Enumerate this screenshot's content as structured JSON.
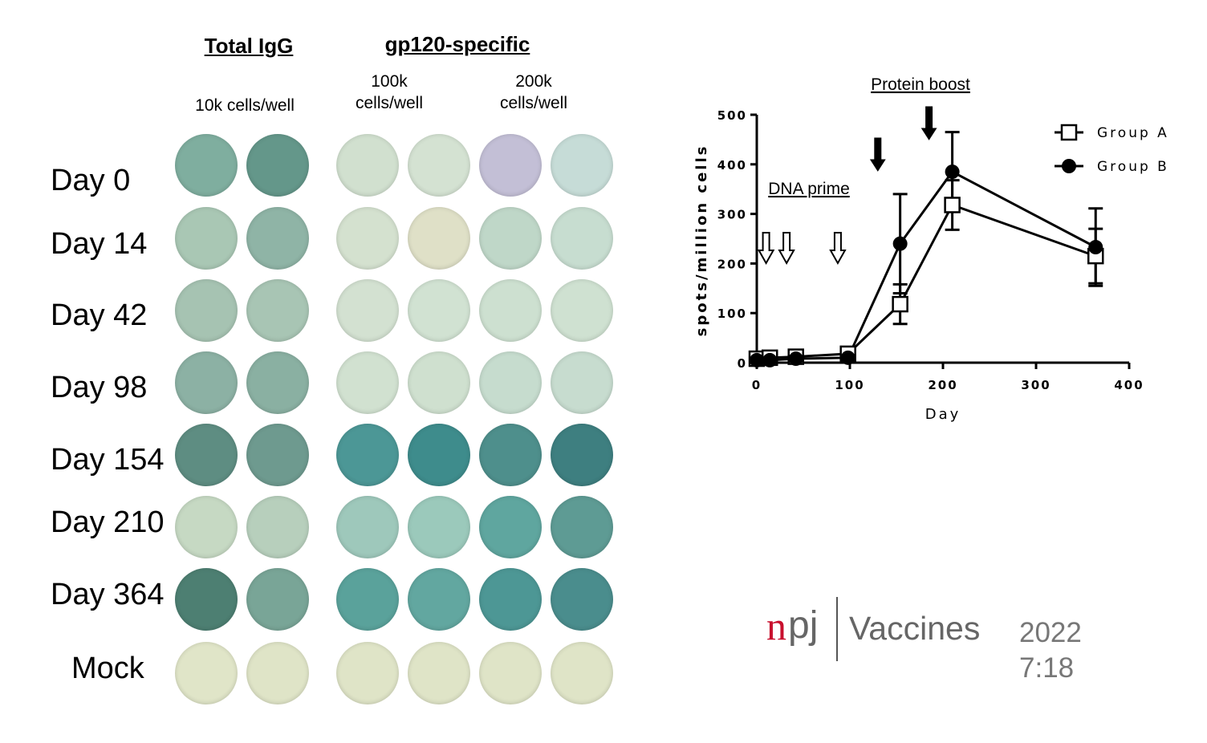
{
  "plate": {
    "header_total": "Total IgG",
    "header_gp120": "gp120-specific",
    "col_10k": "10k cells/well",
    "col_100k_line1": "100k",
    "col_100k_line2": "cells/well",
    "col_200k_line1": "200k",
    "col_200k_line2": "cells/well",
    "rows": [
      "Day 0",
      "Day 14",
      "Day 42",
      "Day 98",
      "Day 154",
      "Day 210",
      "Day 364",
      "Mock"
    ],
    "well_colors": [
      [
        "#7fae9f",
        "#64978a",
        "#d1e0cf",
        "#d4e2d2",
        "#c3bfd6",
        "#c6dcd7"
      ],
      [
        "#a9c7b4",
        "#8fb4a6",
        "#d4e1cf",
        "#dfe0c7",
        "#bfd7c8",
        "#c7ddd0"
      ],
      [
        "#a6c3b2",
        "#a8c5b4",
        "#d3e1d1",
        "#d1e2d2",
        "#cde0d0",
        "#cfe1d1"
      ],
      [
        "#8cb1a4",
        "#8ab0a2",
        "#d1e1d0",
        "#cfe0cf",
        "#c6dcce",
        "#c7dccf"
      ],
      [
        "#5e8d82",
        "#6e9a8f",
        "#4c9796",
        "#3e8c8c",
        "#4e8f8c",
        "#3e7f80"
      ],
      [
        "#c6d9c3",
        "#b7cfbc",
        "#9ec8bb",
        "#9bc9bb",
        "#5fa69f",
        "#5e9b94"
      ],
      [
        "#4d7f72",
        "#79a597",
        "#5aa29b",
        "#62a7a0",
        "#4d9795",
        "#4a8d8d"
      ],
      [
        "#e0e5c8",
        "#dfe4c7",
        "#dfe4c7",
        "#dfe4c7",
        "#dfe4c7",
        "#dfe4c7"
      ]
    ]
  },
  "chart_data": {
    "type": "line",
    "title": "",
    "xlabel": "Day",
    "ylabel": "spots/million cells",
    "xlim": [
      0,
      400
    ],
    "ylim": [
      0,
      500
    ],
    "xticks": [
      "0",
      "100",
      "200",
      "300",
      "400"
    ],
    "yticks": [
      "0",
      "100",
      "200",
      "300",
      "400",
      "500"
    ],
    "legend_position": "top-right",
    "annotations": {
      "protein_boost": "Protein boost",
      "dna_prime": "DNA prime",
      "dna_prime_days": [
        10,
        32,
        87
      ],
      "protein_boost_days": [
        130,
        185
      ]
    },
    "series": [
      {
        "name": "Group A",
        "marker": "open-square",
        "x": [
          0,
          14,
          42,
          98,
          154,
          210,
          364
        ],
        "y": [
          8,
          10,
          12,
          18,
          118,
          318,
          215
        ],
        "err": [
          0,
          0,
          0,
          0,
          40,
          50,
          55
        ]
      },
      {
        "name": "Group B",
        "marker": "filled-circle",
        "x": [
          0,
          14,
          42,
          98,
          154,
          210,
          364
        ],
        "y": [
          5,
          5,
          8,
          10,
          240,
          385,
          233
        ],
        "err": [
          0,
          0,
          0,
          0,
          100,
          80,
          78
        ]
      }
    ]
  },
  "brand": {
    "n": "n",
    "pj": "pj",
    "journal": "Vaccines",
    "year": "2022 7:18"
  }
}
